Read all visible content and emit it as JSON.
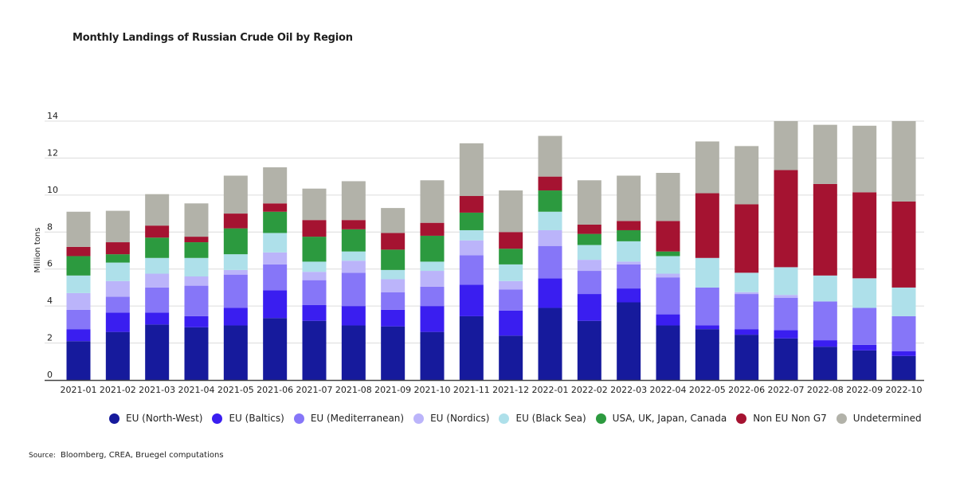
{
  "title": "Monthly Landings of Russian Crude Oil by Region",
  "source_label": "Source:",
  "source_text": "Bloomberg, CREA, Bruegel computations",
  "chart_data": {
    "type": "bar",
    "stacked": true,
    "title": "Monthly Landings of Russian Crude Oil by Region",
    "xlabel": "",
    "ylabel": "Million tons",
    "ylim": [
      0,
      14
    ],
    "yticks": [
      0,
      2,
      4,
      6,
      8,
      10,
      12,
      14
    ],
    "grid": true,
    "legend_position": "bottom",
    "categories": [
      "2021-01",
      "2021-02",
      "2021-03",
      "2021-04",
      "2021-05",
      "2021-06",
      "2021-07",
      "2021-08",
      "2021-09",
      "2021-10",
      "2021-11",
      "2021-12",
      "2022-01",
      "2022-02",
      "2022-03",
      "2022-04",
      "2022-05",
      "2022-06",
      "2022-07",
      "2022-08",
      "2022-09",
      "2022-10"
    ],
    "series": [
      {
        "name": "EU (North-West)",
        "color": "#161a9c",
        "values": [
          2.1,
          2.6,
          3.0,
          2.85,
          2.95,
          3.35,
          3.2,
          2.95,
          2.9,
          2.6,
          3.45,
          2.4,
          3.9,
          3.2,
          4.2,
          2.95,
          2.75,
          2.45,
          2.25,
          1.8,
          1.6,
          1.3
        ]
      },
      {
        "name": "EU (Baltics)",
        "color": "#3a1ef0",
        "values": [
          0.65,
          1.05,
          0.65,
          0.6,
          0.95,
          1.5,
          0.85,
          1.05,
          0.9,
          1.4,
          1.7,
          1.35,
          1.6,
          1.45,
          0.75,
          0.6,
          0.2,
          0.3,
          0.45,
          0.35,
          0.3,
          0.25
        ]
      },
      {
        "name": "EU (Mediterranean)",
        "color": "#8676f8",
        "values": [
          1.05,
          0.85,
          1.35,
          1.65,
          1.8,
          1.4,
          1.35,
          1.8,
          0.95,
          1.05,
          1.6,
          1.15,
          1.75,
          1.25,
          1.3,
          2.0,
          2.05,
          1.9,
          1.75,
          2.1,
          2.0,
          1.9
        ]
      },
      {
        "name": "EU (Nordics)",
        "color": "#bbb4fa",
        "values": [
          0.9,
          0.85,
          0.75,
          0.5,
          0.25,
          0.65,
          0.45,
          0.65,
          0.7,
          0.85,
          0.8,
          0.45,
          0.85,
          0.6,
          0.15,
          0.2,
          0.0,
          0.1,
          0.15,
          0.0,
          0.0,
          0.0
        ]
      },
      {
        "name": "EU (Black Sea)",
        "color": "#aee0ea",
        "values": [
          0.95,
          1.0,
          0.85,
          1.0,
          0.85,
          1.05,
          0.55,
          0.5,
          0.5,
          0.5,
          0.55,
          0.9,
          1.0,
          0.8,
          1.1,
          0.95,
          1.6,
          1.05,
          1.5,
          1.4,
          1.6,
          1.55
        ]
      },
      {
        "name": "USA, UK, Japan, Canada",
        "color": "#2c9a3f",
        "values": [
          1.05,
          0.45,
          1.1,
          0.85,
          1.4,
          1.15,
          1.35,
          1.2,
          1.1,
          1.4,
          0.95,
          0.85,
          1.15,
          0.6,
          0.6,
          0.25,
          0.0,
          0.0,
          0.0,
          0.0,
          0.0,
          0.0
        ]
      },
      {
        "name": "Non EU Non G7",
        "color": "#a51331",
        "values": [
          0.5,
          0.65,
          0.65,
          0.3,
          0.8,
          0.45,
          0.9,
          0.5,
          0.9,
          0.7,
          0.9,
          0.9,
          0.75,
          0.5,
          0.5,
          1.65,
          3.5,
          3.7,
          5.25,
          4.95,
          4.65,
          4.65
        ]
      },
      {
        "name": "Undetermined",
        "color": "#b2b2a9",
        "values": [
          1.9,
          1.7,
          1.7,
          1.8,
          2.05,
          1.95,
          1.7,
          2.1,
          1.35,
          2.3,
          2.85,
          2.25,
          2.2,
          2.4,
          2.45,
          2.6,
          2.8,
          3.15,
          2.65,
          3.2,
          3.6,
          4.35
        ]
      }
    ]
  }
}
